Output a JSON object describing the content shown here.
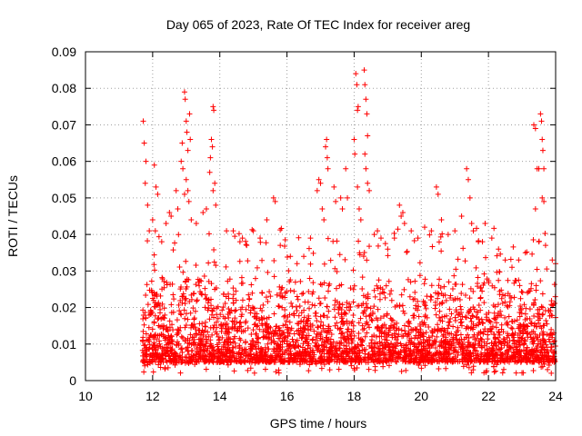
{
  "chart_data": {
    "type": "scatter",
    "title": "Day 065 of 2023, Rate Of TEC Index for receiver areg",
    "xlabel": "GPS time / hours",
    "ylabel": "ROTI / TECUs",
    "xlim": [
      10,
      24
    ],
    "ylim": [
      0,
      0.09
    ],
    "x_ticks": [
      "10",
      "12",
      "14",
      "16",
      "18",
      "20",
      "22",
      "24"
    ],
    "y_ticks": [
      "0",
      "0.01",
      "0.02",
      "0.03",
      "0.04",
      "0.05",
      "0.06",
      "0.07",
      "0.08",
      "0.09"
    ],
    "grid": true,
    "marker": "plus",
    "series": [
      {
        "color": "#ff0000",
        "points": [
          [
            11.72,
            0.071
          ],
          [
            11.75,
            0.065
          ],
          [
            11.8,
            0.06
          ],
          [
            11.78,
            0.054
          ],
          [
            11.85,
            0.048
          ],
          [
            11.9,
            0.041
          ],
          [
            12.05,
            0.059
          ],
          [
            12.1,
            0.053
          ],
          [
            12.15,
            0.051
          ],
          [
            12.0,
            0.044
          ],
          [
            12.08,
            0.041
          ],
          [
            12.4,
            0.043
          ],
          [
            12.5,
            0.046
          ],
          [
            12.55,
            0.045
          ],
          [
            12.7,
            0.052
          ],
          [
            12.75,
            0.047
          ],
          [
            12.85,
            0.06
          ],
          [
            12.88,
            0.065
          ],
          [
            12.9,
            0.058
          ],
          [
            12.95,
            0.079
          ],
          [
            12.97,
            0.077
          ],
          [
            13.0,
            0.071
          ],
          [
            13.02,
            0.068
          ],
          [
            13.05,
            0.063
          ],
          [
            13.1,
            0.073
          ],
          [
            13.12,
            0.066
          ],
          [
            13.0,
            0.055
          ],
          [
            13.05,
            0.052
          ],
          [
            12.95,
            0.051
          ],
          [
            13.08,
            0.049
          ],
          [
            13.15,
            0.044
          ],
          [
            13.3,
            0.043
          ],
          [
            13.5,
            0.046
          ],
          [
            13.6,
            0.047
          ],
          [
            13.72,
            0.061
          ],
          [
            13.75,
            0.066
          ],
          [
            13.78,
            0.064
          ],
          [
            13.8,
            0.075
          ],
          [
            13.82,
            0.074
          ],
          [
            13.7,
            0.057
          ],
          [
            13.85,
            0.054
          ],
          [
            13.8,
            0.052
          ],
          [
            13.88,
            0.048
          ],
          [
            14.2,
            0.041
          ],
          [
            14.4,
            0.041
          ],
          [
            14.6,
            0.038
          ],
          [
            14.8,
            0.037
          ],
          [
            15.0,
            0.041
          ],
          [
            15.2,
            0.039
          ],
          [
            15.4,
            0.044
          ],
          [
            15.6,
            0.05
          ],
          [
            15.65,
            0.049
          ],
          [
            15.8,
            0.037
          ],
          [
            16.1,
            0.034
          ],
          [
            16.3,
            0.032
          ],
          [
            16.5,
            0.034
          ],
          [
            16.7,
            0.039
          ],
          [
            16.9,
            0.052
          ],
          [
            16.95,
            0.055
          ],
          [
            17.0,
            0.054
          ],
          [
            17.05,
            0.047
          ],
          [
            17.1,
            0.044
          ],
          [
            17.15,
            0.064
          ],
          [
            17.18,
            0.066
          ],
          [
            17.2,
            0.061
          ],
          [
            17.22,
            0.058
          ],
          [
            17.4,
            0.053
          ],
          [
            17.45,
            0.049
          ],
          [
            17.6,
            0.05
          ],
          [
            17.65,
            0.047
          ],
          [
            17.75,
            0.058
          ],
          [
            17.8,
            0.05
          ],
          [
            18.05,
            0.084
          ],
          [
            18.08,
            0.081
          ],
          [
            18.1,
            0.074
          ],
          [
            18.12,
            0.075
          ],
          [
            18.0,
            0.066
          ],
          [
            18.02,
            0.062
          ],
          [
            18.1,
            0.053
          ],
          [
            18.15,
            0.047
          ],
          [
            18.2,
            0.044
          ],
          [
            18.3,
            0.085
          ],
          [
            18.32,
            0.081
          ],
          [
            18.35,
            0.077
          ],
          [
            18.38,
            0.073
          ],
          [
            18.4,
            0.067
          ],
          [
            18.32,
            0.062
          ],
          [
            18.35,
            0.058
          ],
          [
            18.4,
            0.054
          ],
          [
            18.45,
            0.052
          ],
          [
            18.6,
            0.04
          ],
          [
            18.8,
            0.039
          ],
          [
            19.0,
            0.036
          ],
          [
            19.2,
            0.039
          ],
          [
            19.35,
            0.048
          ],
          [
            19.4,
            0.045
          ],
          [
            19.45,
            0.046
          ],
          [
            19.5,
            0.043
          ],
          [
            19.7,
            0.041
          ],
          [
            19.9,
            0.039
          ],
          [
            20.1,
            0.042
          ],
          [
            20.3,
            0.041
          ],
          [
            20.45,
            0.053
          ],
          [
            20.5,
            0.051
          ],
          [
            20.6,
            0.044
          ],
          [
            20.8,
            0.04
          ],
          [
            21.0,
            0.041
          ],
          [
            21.2,
            0.045
          ],
          [
            21.35,
            0.058
          ],
          [
            21.4,
            0.055
          ],
          [
            21.45,
            0.05
          ],
          [
            21.5,
            0.043
          ],
          [
            21.55,
            0.041
          ],
          [
            21.7,
            0.038
          ],
          [
            21.9,
            0.043
          ],
          [
            22.1,
            0.039
          ],
          [
            22.3,
            0.036
          ],
          [
            22.5,
            0.033
          ],
          [
            22.7,
            0.031
          ],
          [
            22.9,
            0.033
          ],
          [
            23.1,
            0.035
          ],
          [
            23.35,
            0.07
          ],
          [
            23.4,
            0.069
          ],
          [
            23.45,
            0.058
          ],
          [
            23.5,
            0.058
          ],
          [
            23.55,
            0.073
          ],
          [
            23.58,
            0.071
          ],
          [
            23.6,
            0.066
          ],
          [
            23.62,
            0.063
          ],
          [
            23.65,
            0.058
          ],
          [
            23.6,
            0.05
          ],
          [
            23.65,
            0.049
          ],
          [
            23.4,
            0.047
          ],
          [
            23.5,
            0.038
          ],
          [
            23.7,
            0.037
          ],
          [
            23.9,
            0.033
          ],
          [
            24.0,
            0.032
          ]
        ]
      }
    ],
    "dense_band": {
      "x_start": 11.7,
      "x_end": 24.0,
      "y_min": 0.002,
      "y_typical_max": 0.028,
      "y_peak_max": 0.042
    }
  }
}
